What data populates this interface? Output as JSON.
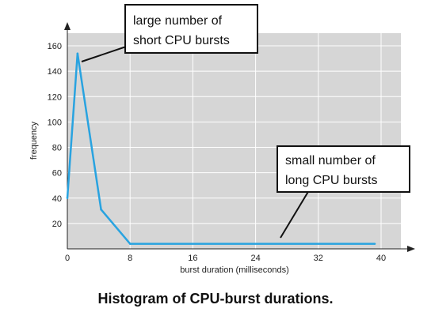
{
  "chart_data": {
    "type": "line",
    "xlabel": "burst duration (milliseconds)",
    "ylabel": "frequency",
    "xlim": [
      0,
      40
    ],
    "ylim": [
      0,
      170
    ],
    "x_ticks": [
      0,
      8,
      16,
      24,
      32,
      40
    ],
    "y_ticks": [
      20,
      40,
      60,
      80,
      100,
      120,
      140,
      160
    ],
    "grid": true,
    "series": [
      {
        "x": [
          0,
          1.3,
          4.3,
          8,
          39.2
        ],
        "y": [
          40,
          154,
          31,
          4,
          4
        ]
      }
    ],
    "annotations": [
      {
        "line1": "large number of",
        "line2": "short CPU bursts"
      },
      {
        "line1": "small number of",
        "line2": "long CPU bursts"
      }
    ],
    "colors": {
      "line": "#29a3e0",
      "plot_bg": "#d6d6d6",
      "grid": "#ffffff"
    }
  },
  "caption": "Histogram of CPU-burst durations."
}
